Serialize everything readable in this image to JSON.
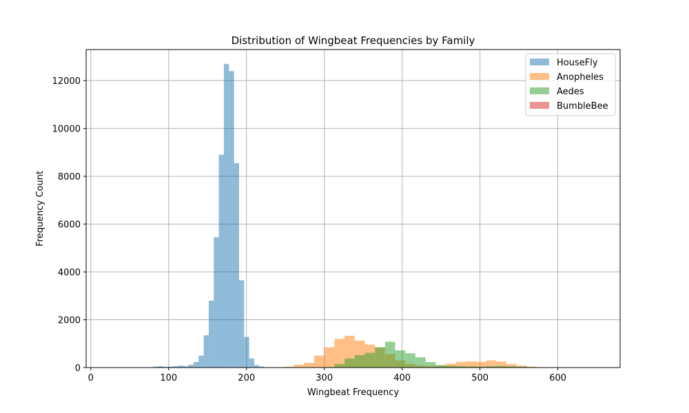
{
  "chart_data": {
    "type": "histogram",
    "title": "Distribution of Wingbeat Frequencies by Family",
    "xlabel": "Wingbeat Frequency",
    "ylabel": "Frequency Count",
    "xlim": [
      -6,
      680
    ],
    "ylim": [
      0,
      13300
    ],
    "x_ticks": [
      0,
      100,
      200,
      300,
      400,
      500,
      600
    ],
    "y_ticks": [
      0,
      2000,
      4000,
      6000,
      8000,
      10000,
      12000
    ],
    "x_tick_labels": [
      "0",
      "100",
      "200",
      "300",
      "400",
      "500",
      "600"
    ],
    "y_tick_labels": [
      "0",
      "2000",
      "4000",
      "6000",
      "8000",
      "10000",
      "12000"
    ],
    "grid": true,
    "legend_position": "top-right",
    "series": [
      {
        "name": "HouseFly",
        "color": "#1f77b4",
        "alpha": 0.5,
        "bin_start": 80,
        "bin_width": 6.5,
        "counts": [
          40,
          60,
          30,
          40,
          60,
          80,
          60,
          120,
          230,
          500,
          1350,
          2800,
          5450,
          8900,
          12700,
          12400,
          8550,
          3650,
          1280,
          380,
          100,
          40,
          10
        ]
      },
      {
        "name": "Anopheles",
        "color": "#ff7f0e",
        "alpha": 0.5,
        "bin_start": 235,
        "bin_width": 13,
        "counts": [
          15,
          40,
          120,
          200,
          500,
          850,
          1200,
          1330,
          1130,
          960,
          850,
          570,
          300,
          150,
          80,
          60,
          90,
          160,
          240,
          260,
          240,
          300,
          250,
          150,
          80,
          40,
          15
        ]
      },
      {
        "name": "Aedes",
        "color": "#2ca02c",
        "alpha": 0.5,
        "bin_start": 300,
        "bin_width": 13,
        "counts": [
          20,
          150,
          380,
          520,
          620,
          850,
          1080,
          720,
          600,
          430,
          230,
          100,
          80,
          60,
          50,
          40,
          60,
          70,
          50,
          40,
          20,
          10
        ]
      },
      {
        "name": "BumbleBee",
        "color": "#d62728",
        "alpha": 0.5,
        "bin_start": 100,
        "bin_width": 13,
        "counts": [
          5,
          10,
          5
        ]
      }
    ]
  }
}
